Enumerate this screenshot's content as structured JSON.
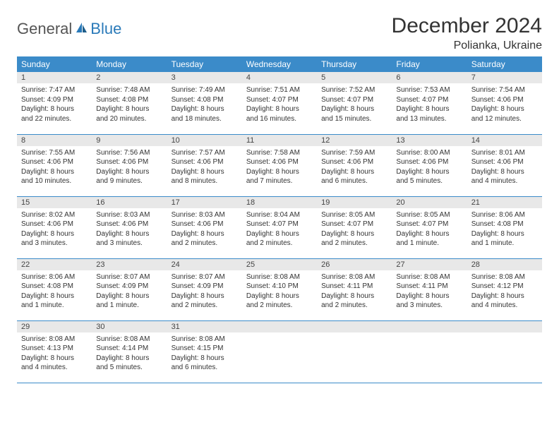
{
  "brand": {
    "part1": "General",
    "part2": "Blue"
  },
  "title": "December 2024",
  "location": "Polianka, Ukraine",
  "colors": {
    "header_bg": "#3b8bc9",
    "header_text": "#ffffff",
    "daynum_bg": "#e8e8e8",
    "row_border": "#3b8bc9",
    "brand_blue": "#2a7ab9",
    "body_text": "#333333"
  },
  "fonts": {
    "title_size": 30,
    "location_size": 16,
    "weekday_size": 12,
    "daynum_size": 11,
    "content_size": 10
  },
  "weekdays": [
    "Sunday",
    "Monday",
    "Tuesday",
    "Wednesday",
    "Thursday",
    "Friday",
    "Saturday"
  ],
  "weeks": [
    [
      {
        "num": "1",
        "sunrise": "Sunrise: 7:47 AM",
        "sunset": "Sunset: 4:09 PM",
        "daylight": "Daylight: 8 hours and 22 minutes."
      },
      {
        "num": "2",
        "sunrise": "Sunrise: 7:48 AM",
        "sunset": "Sunset: 4:08 PM",
        "daylight": "Daylight: 8 hours and 20 minutes."
      },
      {
        "num": "3",
        "sunrise": "Sunrise: 7:49 AM",
        "sunset": "Sunset: 4:08 PM",
        "daylight": "Daylight: 8 hours and 18 minutes."
      },
      {
        "num": "4",
        "sunrise": "Sunrise: 7:51 AM",
        "sunset": "Sunset: 4:07 PM",
        "daylight": "Daylight: 8 hours and 16 minutes."
      },
      {
        "num": "5",
        "sunrise": "Sunrise: 7:52 AM",
        "sunset": "Sunset: 4:07 PM",
        "daylight": "Daylight: 8 hours and 15 minutes."
      },
      {
        "num": "6",
        "sunrise": "Sunrise: 7:53 AM",
        "sunset": "Sunset: 4:07 PM",
        "daylight": "Daylight: 8 hours and 13 minutes."
      },
      {
        "num": "7",
        "sunrise": "Sunrise: 7:54 AM",
        "sunset": "Sunset: 4:06 PM",
        "daylight": "Daylight: 8 hours and 12 minutes."
      }
    ],
    [
      {
        "num": "8",
        "sunrise": "Sunrise: 7:55 AM",
        "sunset": "Sunset: 4:06 PM",
        "daylight": "Daylight: 8 hours and 10 minutes."
      },
      {
        "num": "9",
        "sunrise": "Sunrise: 7:56 AM",
        "sunset": "Sunset: 4:06 PM",
        "daylight": "Daylight: 8 hours and 9 minutes."
      },
      {
        "num": "10",
        "sunrise": "Sunrise: 7:57 AM",
        "sunset": "Sunset: 4:06 PM",
        "daylight": "Daylight: 8 hours and 8 minutes."
      },
      {
        "num": "11",
        "sunrise": "Sunrise: 7:58 AM",
        "sunset": "Sunset: 4:06 PM",
        "daylight": "Daylight: 8 hours and 7 minutes."
      },
      {
        "num": "12",
        "sunrise": "Sunrise: 7:59 AM",
        "sunset": "Sunset: 4:06 PM",
        "daylight": "Daylight: 8 hours and 6 minutes."
      },
      {
        "num": "13",
        "sunrise": "Sunrise: 8:00 AM",
        "sunset": "Sunset: 4:06 PM",
        "daylight": "Daylight: 8 hours and 5 minutes."
      },
      {
        "num": "14",
        "sunrise": "Sunrise: 8:01 AM",
        "sunset": "Sunset: 4:06 PM",
        "daylight": "Daylight: 8 hours and 4 minutes."
      }
    ],
    [
      {
        "num": "15",
        "sunrise": "Sunrise: 8:02 AM",
        "sunset": "Sunset: 4:06 PM",
        "daylight": "Daylight: 8 hours and 3 minutes."
      },
      {
        "num": "16",
        "sunrise": "Sunrise: 8:03 AM",
        "sunset": "Sunset: 4:06 PM",
        "daylight": "Daylight: 8 hours and 3 minutes."
      },
      {
        "num": "17",
        "sunrise": "Sunrise: 8:03 AM",
        "sunset": "Sunset: 4:06 PM",
        "daylight": "Daylight: 8 hours and 2 minutes."
      },
      {
        "num": "18",
        "sunrise": "Sunrise: 8:04 AM",
        "sunset": "Sunset: 4:07 PM",
        "daylight": "Daylight: 8 hours and 2 minutes."
      },
      {
        "num": "19",
        "sunrise": "Sunrise: 8:05 AM",
        "sunset": "Sunset: 4:07 PM",
        "daylight": "Daylight: 8 hours and 2 minutes."
      },
      {
        "num": "20",
        "sunrise": "Sunrise: 8:05 AM",
        "sunset": "Sunset: 4:07 PM",
        "daylight": "Daylight: 8 hours and 1 minute."
      },
      {
        "num": "21",
        "sunrise": "Sunrise: 8:06 AM",
        "sunset": "Sunset: 4:08 PM",
        "daylight": "Daylight: 8 hours and 1 minute."
      }
    ],
    [
      {
        "num": "22",
        "sunrise": "Sunrise: 8:06 AM",
        "sunset": "Sunset: 4:08 PM",
        "daylight": "Daylight: 8 hours and 1 minute."
      },
      {
        "num": "23",
        "sunrise": "Sunrise: 8:07 AM",
        "sunset": "Sunset: 4:09 PM",
        "daylight": "Daylight: 8 hours and 1 minute."
      },
      {
        "num": "24",
        "sunrise": "Sunrise: 8:07 AM",
        "sunset": "Sunset: 4:09 PM",
        "daylight": "Daylight: 8 hours and 2 minutes."
      },
      {
        "num": "25",
        "sunrise": "Sunrise: 8:08 AM",
        "sunset": "Sunset: 4:10 PM",
        "daylight": "Daylight: 8 hours and 2 minutes."
      },
      {
        "num": "26",
        "sunrise": "Sunrise: 8:08 AM",
        "sunset": "Sunset: 4:11 PM",
        "daylight": "Daylight: 8 hours and 2 minutes."
      },
      {
        "num": "27",
        "sunrise": "Sunrise: 8:08 AM",
        "sunset": "Sunset: 4:11 PM",
        "daylight": "Daylight: 8 hours and 3 minutes."
      },
      {
        "num": "28",
        "sunrise": "Sunrise: 8:08 AM",
        "sunset": "Sunset: 4:12 PM",
        "daylight": "Daylight: 8 hours and 4 minutes."
      }
    ],
    [
      {
        "num": "29",
        "sunrise": "Sunrise: 8:08 AM",
        "sunset": "Sunset: 4:13 PM",
        "daylight": "Daylight: 8 hours and 4 minutes."
      },
      {
        "num": "30",
        "sunrise": "Sunrise: 8:08 AM",
        "sunset": "Sunset: 4:14 PM",
        "daylight": "Daylight: 8 hours and 5 minutes."
      },
      {
        "num": "31",
        "sunrise": "Sunrise: 8:08 AM",
        "sunset": "Sunset: 4:15 PM",
        "daylight": "Daylight: 8 hours and 6 minutes."
      },
      {
        "num": "",
        "sunrise": "",
        "sunset": "",
        "daylight": ""
      },
      {
        "num": "",
        "sunrise": "",
        "sunset": "",
        "daylight": ""
      },
      {
        "num": "",
        "sunrise": "",
        "sunset": "",
        "daylight": ""
      },
      {
        "num": "",
        "sunrise": "",
        "sunset": "",
        "daylight": ""
      }
    ]
  ]
}
